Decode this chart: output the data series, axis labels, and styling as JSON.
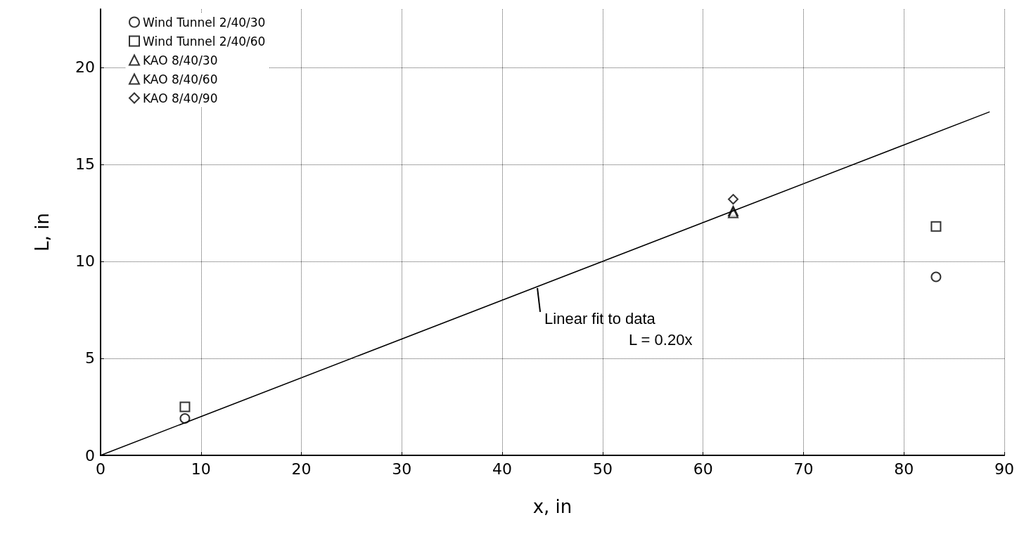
{
  "chart_data": {
    "type": "scatter",
    "xlabel": "x, in",
    "ylabel": "L, in",
    "xlim": [
      0,
      90
    ],
    "ylim": [
      0,
      23
    ],
    "xticks": [
      0,
      10,
      20,
      30,
      40,
      50,
      60,
      70,
      80,
      90
    ],
    "yticks": [
      0,
      5,
      10,
      15,
      20
    ],
    "grid": true,
    "legend": "top left",
    "series": [
      {
        "name": "Wind Tunnel 2/40/30",
        "color": "#000000",
        "marker": "circle",
        "x": [
          8.4,
          83.2
        ],
        "values": [
          1.9,
          9.2
        ]
      },
      {
        "name": "Wind Tunnel 2/40/60",
        "color": "#000000",
        "marker": "square",
        "x": [
          8.4,
          83.2
        ],
        "values": [
          2.5,
          11.8
        ]
      },
      {
        "name": "KAO 8/40/30",
        "color": "#000000",
        "marker": "triangle",
        "x": [
          63
        ],
        "values": [
          12.6
        ]
      },
      {
        "name": "KAO 8/40/60",
        "color": "#000000",
        "marker": "triangle",
        "x": [
          63
        ],
        "values": [
          12.5
        ]
      },
      {
        "name": "KAO 8/40/90",
        "color": "#000000",
        "marker": "diamond",
        "x": [
          63
        ],
        "values": [
          13.2
        ]
      },
      {
        "type": "line",
        "color": "#000000",
        "marker": "none",
        "line_style": "solid",
        "x": [
          0,
          88.5
        ],
        "values": [
          0,
          17.7
        ]
      }
    ],
    "annotations": [
      {
        "text": "Linear fit to data",
        "x": 43.5,
        "y": 8.7
      },
      "L = 0.20x"
    ]
  }
}
